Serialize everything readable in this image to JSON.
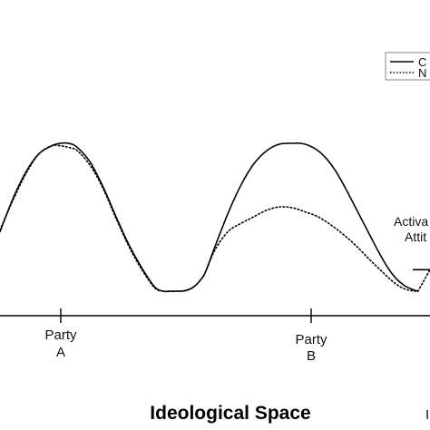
{
  "chart_data": {
    "type": "line",
    "title": "",
    "xlabel": "Ideological Space",
    "ylabel": "",
    "grid": false,
    "legend_position": "top-right",
    "xlim": [
      0,
      100
    ],
    "ylim": [
      0,
      100
    ],
    "x_ticks": [
      {
        "x": 15,
        "line1": "Party",
        "line2": "A"
      },
      {
        "x": 75,
        "line1": "Party",
        "line2": "B"
      }
    ],
    "annotations": [
      {
        "text_line1": "Activa",
        "text_line2": "Attit"
      }
    ],
    "cut_text": {
      "legend_solid": "C",
      "legend_dotted": "N",
      "axis_right": "I"
    },
    "series": [
      {
        "name": "C",
        "style": "solid",
        "x": [
          0,
          3,
          6,
          9,
          12,
          14,
          16,
          18,
          21,
          24,
          27,
          30,
          33,
          36,
          38,
          39.5,
          41,
          43,
          45,
          47,
          48,
          50,
          53,
          56,
          59,
          62,
          65,
          68,
          70,
          72,
          74,
          76,
          78,
          80,
          83,
          86,
          88,
          90,
          92,
          94,
          96,
          97.2
        ],
        "y": [
          36,
          56,
          72,
          83,
          88,
          89.5,
          89.5,
          87,
          78,
          63,
          45,
          28,
          14,
          2.5,
          0,
          0,
          0,
          0.3,
          2.5,
          8,
          13,
          27,
          47,
          64,
          77,
          85,
          89,
          89.5,
          89.5,
          88,
          85,
          80,
          73,
          64,
          49,
          34,
          24,
          15,
          8,
          3.5,
          1,
          0
        ]
      },
      {
        "name": "N",
        "style": "dotted",
        "x": [
          0,
          3,
          6,
          9,
          12,
          14,
          16,
          18,
          21,
          24,
          27,
          30,
          33,
          36,
          38,
          39.5,
          41,
          43,
          45,
          47,
          48,
          50,
          53,
          56,
          59,
          62,
          65,
          68,
          71,
          74,
          77,
          80,
          83,
          86,
          88,
          90,
          92,
          94,
          96,
          97.2
        ],
        "y": [
          37,
          55,
          71,
          83,
          88,
          88,
          87,
          85,
          76,
          62,
          44,
          27,
          13,
          2,
          0,
          0,
          0,
          0.3,
          2.5,
          8,
          13,
          25,
          36,
          41,
          45,
          49,
          51,
          50.5,
          48,
          45,
          40,
          34,
          27,
          19,
          14,
          9,
          4.5,
          1.5,
          0.2,
          0
        ]
      },
      {
        "name": "",
        "style": "dotted",
        "x": [
          97.2,
          98.5,
          100
        ],
        "y": [
          0,
          6,
          13
        ]
      }
    ],
    "annotation_line": {
      "style": "solid",
      "x": [
        96,
        100
      ],
      "y": [
        13,
        13
      ]
    }
  }
}
